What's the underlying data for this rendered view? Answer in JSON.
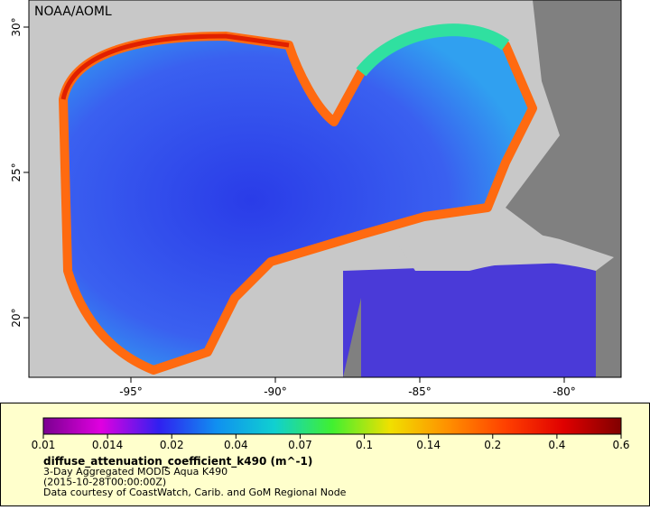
{
  "map": {
    "credit": "NOAA/AOML",
    "lon_labels": [
      "-95°",
      "-90°",
      "-85°",
      "-80°"
    ],
    "lat_labels": [
      "30°",
      "25°",
      "20°"
    ]
  },
  "legend": {
    "ticks": [
      "0.01",
      "0.014",
      "0.02",
      "0.04",
      "0.07",
      "0.1",
      "0.14",
      "0.2",
      "0.4",
      "0.6"
    ],
    "variable": "diffuse_attenuation_coefficient_k490 (m^-1)",
    "lines": [
      "3-Day Aggregated MODIS Aqua K490",
      "(2015-10-28T00:00:00Z)",
      "Data courtesy of CoastWatch, Carib. and GoM Regional Node"
    ]
  }
}
